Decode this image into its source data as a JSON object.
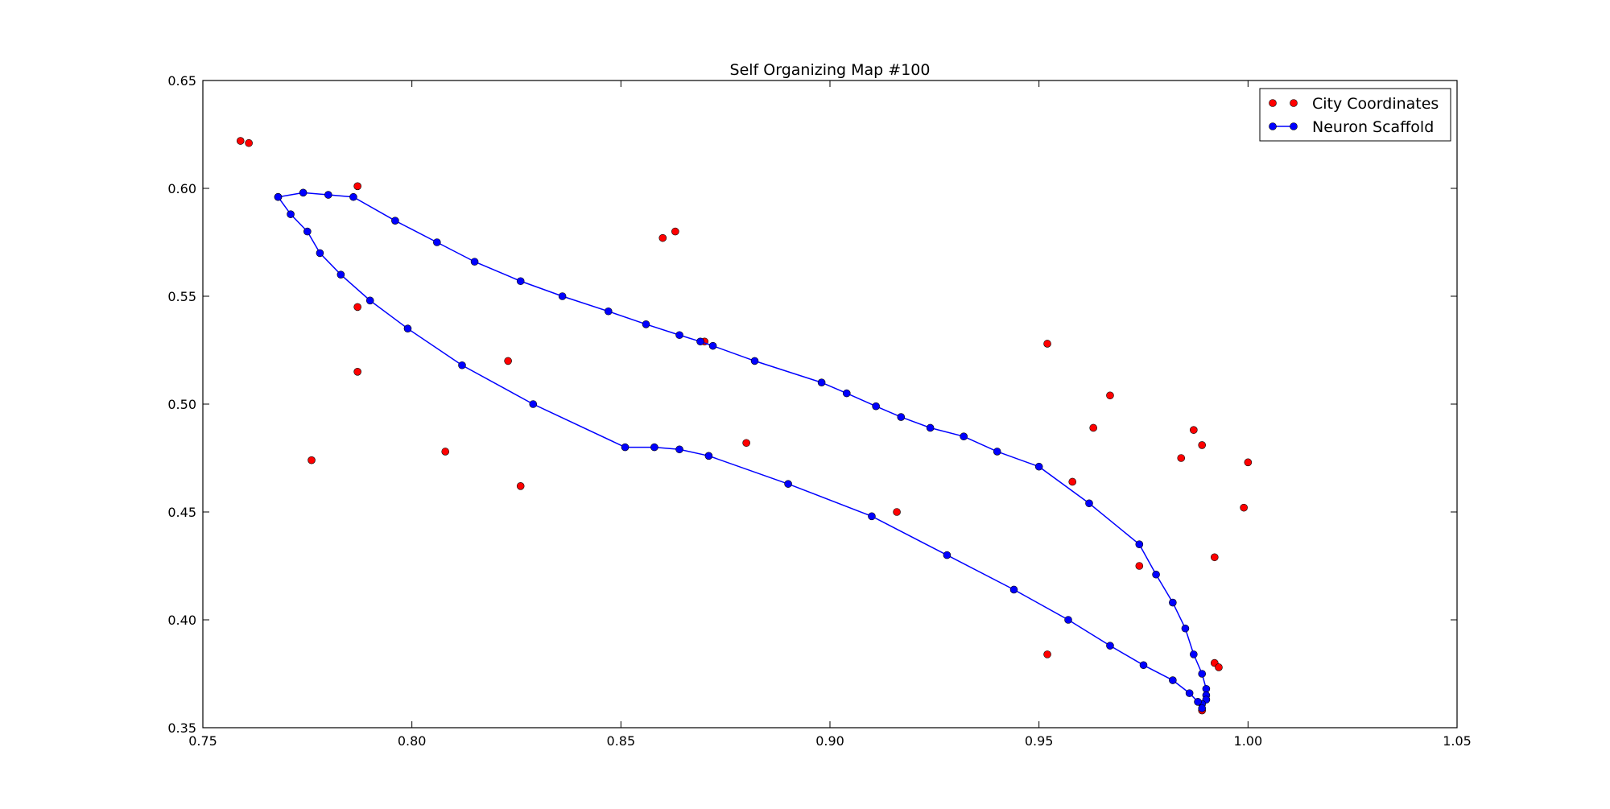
{
  "chart_data": {
    "type": "scatter",
    "title": "Self Organizing Map #100",
    "xlabel": "",
    "ylabel": "",
    "xlim": [
      0.75,
      1.05
    ],
    "ylim": [
      0.35,
      0.65
    ],
    "xticks": [
      0.75,
      0.8,
      0.85,
      0.9,
      0.95,
      1.0,
      1.05
    ],
    "yticks": [
      0.35,
      0.4,
      0.45,
      0.5,
      0.55,
      0.6,
      0.65
    ],
    "xtick_labels": [
      "0.75",
      "0.80",
      "0.85",
      "0.90",
      "0.95",
      "1.00",
      "1.05"
    ],
    "ytick_labels": [
      "0.35",
      "0.40",
      "0.45",
      "0.50",
      "0.55",
      "0.60",
      "0.65"
    ],
    "grid": false,
    "legend_position": "top-right",
    "series": [
      {
        "name": "City Coordinates",
        "style": "markers",
        "color": "#ff0000",
        "points": [
          [
            0.759,
            0.622
          ],
          [
            0.761,
            0.621
          ],
          [
            0.787,
            0.601
          ],
          [
            0.787,
            0.545
          ],
          [
            0.787,
            0.515
          ],
          [
            0.776,
            0.474
          ],
          [
            0.808,
            0.478
          ],
          [
            0.823,
            0.52
          ],
          [
            0.826,
            0.462
          ],
          [
            0.86,
            0.577
          ],
          [
            0.863,
            0.58
          ],
          [
            0.87,
            0.529
          ],
          [
            0.88,
            0.482
          ],
          [
            0.916,
            0.45
          ],
          [
            0.952,
            0.528
          ],
          [
            0.958,
            0.464
          ],
          [
            0.963,
            0.489
          ],
          [
            0.967,
            0.504
          ],
          [
            0.952,
            0.384
          ],
          [
            0.974,
            0.425
          ],
          [
            0.984,
            0.475
          ],
          [
            0.987,
            0.488
          ],
          [
            0.989,
            0.481
          ],
          [
            0.992,
            0.429
          ],
          [
            0.992,
            0.38
          ],
          [
            0.993,
            0.378
          ],
          [
            0.999,
            0.452
          ],
          [
            1.0,
            0.473
          ],
          [
            0.989,
            0.358
          ]
        ]
      },
      {
        "name": "Neuron Scaffold",
        "style": "line-markers",
        "color": "#0000ff",
        "points": [
          [
            0.768,
            0.596
          ],
          [
            0.774,
            0.598
          ],
          [
            0.78,
            0.597
          ],
          [
            0.786,
            0.596
          ],
          [
            0.796,
            0.585
          ],
          [
            0.806,
            0.575
          ],
          [
            0.815,
            0.566
          ],
          [
            0.826,
            0.557
          ],
          [
            0.836,
            0.55
          ],
          [
            0.847,
            0.543
          ],
          [
            0.856,
            0.537
          ],
          [
            0.864,
            0.532
          ],
          [
            0.869,
            0.529
          ],
          [
            0.872,
            0.527
          ],
          [
            0.882,
            0.52
          ],
          [
            0.898,
            0.51
          ],
          [
            0.904,
            0.505
          ],
          [
            0.911,
            0.499
          ],
          [
            0.917,
            0.494
          ],
          [
            0.924,
            0.489
          ],
          [
            0.932,
            0.485
          ],
          [
            0.94,
            0.478
          ],
          [
            0.95,
            0.471
          ],
          [
            0.962,
            0.454
          ],
          [
            0.974,
            0.435
          ],
          [
            0.978,
            0.421
          ],
          [
            0.982,
            0.408
          ],
          [
            0.985,
            0.396
          ],
          [
            0.987,
            0.384
          ],
          [
            0.989,
            0.375
          ],
          [
            0.99,
            0.368
          ],
          [
            0.99,
            0.365
          ],
          [
            0.99,
            0.363
          ],
          [
            0.989,
            0.361
          ],
          [
            0.989,
            0.359
          ],
          [
            0.988,
            0.362
          ],
          [
            0.986,
            0.366
          ],
          [
            0.982,
            0.372
          ],
          [
            0.975,
            0.379
          ],
          [
            0.967,
            0.388
          ],
          [
            0.957,
            0.4
          ],
          [
            0.944,
            0.414
          ],
          [
            0.928,
            0.43
          ],
          [
            0.91,
            0.448
          ],
          [
            0.89,
            0.463
          ],
          [
            0.871,
            0.476
          ],
          [
            0.864,
            0.479
          ],
          [
            0.858,
            0.48
          ],
          [
            0.851,
            0.48
          ],
          [
            0.829,
            0.5
          ],
          [
            0.812,
            0.518
          ],
          [
            0.799,
            0.535
          ],
          [
            0.79,
            0.548
          ],
          [
            0.783,
            0.56
          ],
          [
            0.778,
            0.57
          ],
          [
            0.775,
            0.58
          ],
          [
            0.771,
            0.588
          ],
          [
            0.768,
            0.596
          ]
        ]
      }
    ]
  }
}
